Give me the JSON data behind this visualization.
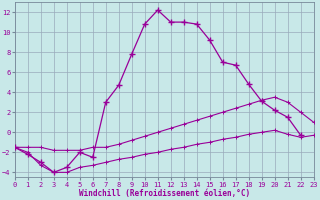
{
  "xlabel": "Windchill (Refroidissement éolien,°C)",
  "background_color": "#c8e8e8",
  "line_color": "#990099",
  "grid_color": "#99aabb",
  "xlim": [
    0,
    23
  ],
  "ylim": [
    -4.5,
    13.0
  ],
  "xticks": [
    0,
    1,
    2,
    3,
    4,
    5,
    6,
    7,
    8,
    9,
    10,
    11,
    12,
    13,
    14,
    15,
    16,
    17,
    18,
    19,
    20,
    21,
    22,
    23
  ],
  "yticks": [
    -4,
    -2,
    0,
    2,
    4,
    6,
    8,
    10,
    12
  ],
  "hours": [
    0,
    1,
    2,
    3,
    4,
    5,
    6,
    7,
    8,
    9,
    10,
    11,
    12,
    13,
    14,
    15,
    16,
    17,
    18,
    19,
    20,
    21,
    22,
    23
  ],
  "line_bell": [
    -1.5,
    -2.2,
    -3.0,
    -4.0,
    -3.5,
    -2.0,
    -2.5,
    3.0,
    4.7,
    7.8,
    10.8,
    12.2,
    11.0,
    11.0,
    10.8,
    9.2,
    7.0,
    6.7,
    4.8,
    3.1,
    2.2,
    1.5,
    -0.3,
    null
  ],
  "line_mid": [
    -1.5,
    -1.5,
    -1.5,
    -1.8,
    -1.8,
    -1.8,
    -1.5,
    -1.5,
    -1.2,
    -0.8,
    -0.4,
    0.0,
    0.4,
    0.8,
    1.2,
    1.6,
    2.0,
    2.4,
    2.8,
    3.2,
    3.5,
    3.0,
    2.0,
    1.0
  ],
  "line_bot": [
    -1.5,
    -2.0,
    -3.3,
    -4.0,
    -4.0,
    -3.5,
    -3.3,
    -3.0,
    -2.7,
    -2.5,
    -2.2,
    -2.0,
    -1.7,
    -1.5,
    -1.2,
    -1.0,
    -0.7,
    -0.5,
    -0.2,
    0.0,
    0.2,
    -0.2,
    -0.5,
    -0.3
  ]
}
